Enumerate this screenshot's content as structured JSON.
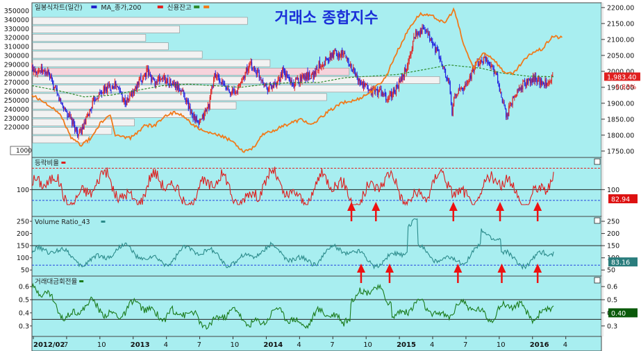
{
  "title": "거래소 종합지수",
  "colors": {
    "plot_bg": "#a8eef0",
    "frame_bg": "#ffffff",
    "candle_up": "#e02020",
    "candle_down": "#2020e0",
    "ma": "#2e8b2e",
    "credit": "#f07a1a",
    "ratio": "#dd1c1c",
    "vr": "#2a8a8a",
    "turnover": "#1a7a1a",
    "ref_blue": "#2244dd",
    "ref_red": "#dd2222",
    "arrow": "#ee1111"
  },
  "legend": {
    "p1": [
      {
        "label": "일봉식차트(일간)",
        "color": "#2222cc"
      },
      {
        "label": "MA_종가,200",
        "color": "#e02020"
      },
      {
        "label": "신용잔고",
        "color": "#2e8b2e"
      },
      {
        "label": "",
        "color": "#f07a1a"
      }
    ],
    "p2": {
      "label": "등락비율",
      "color": "#dd1c1c"
    },
    "p3": {
      "label": "Volume Ratio_43",
      "color": "#2a8a8a"
    },
    "p4": {
      "label": "거래대금회전율",
      "color": "#1a7a1a"
    }
  },
  "x_axis": {
    "labels": [
      "2012/02",
      "7",
      "10",
      "2013",
      "4",
      "7",
      "10",
      "2014",
      "4",
      "7",
      "10",
      "2015",
      "4",
      "7",
      "10",
      "2016",
      "4"
    ],
    "bold": [
      "2012/02",
      "2013",
      "2014",
      "2015",
      "2016"
    ]
  },
  "chart_data": [
    {
      "type": "candlestick",
      "name": "price",
      "left_ticks": [
        "350000",
        "340000",
        "330000",
        "320000",
        "310000",
        "300000",
        "290000",
        "280000",
        "270000",
        "260000",
        "250000",
        "240000",
        "230000",
        "220000"
      ],
      "left_unit": "1000",
      "right_ticks": [
        "2200.00",
        "2150.00",
        "2100.00",
        "2050.00",
        "2000.00",
        "1950.00",
        "1900.00",
        "1850.00",
        "1800.00",
        "1750.00"
      ],
      "ylim": [
        1730,
        2215
      ],
      "last_value": "1,983.40",
      "change_pct": "0.83%",
      "price_path": [
        [
          0,
          2010
        ],
        [
          0.03,
          1995
        ],
        [
          0.05,
          1920
        ],
        [
          0.07,
          1860
        ],
        [
          0.09,
          1800
        ],
        [
          0.1,
          1830
        ],
        [
          0.12,
          1915
        ],
        [
          0.14,
          1945
        ],
        [
          0.16,
          1960
        ],
        [
          0.18,
          1900
        ],
        [
          0.2,
          1950
        ],
        [
          0.22,
          2000
        ],
        [
          0.235,
          1965
        ],
        [
          0.25,
          1980
        ],
        [
          0.27,
          1960
        ],
        [
          0.29,
          1935
        ],
        [
          0.3,
          1890
        ],
        [
          0.32,
          1830
        ],
        [
          0.34,
          1900
        ],
        [
          0.35,
          1990
        ],
        [
          0.37,
          1950
        ],
        [
          0.39,
          1930
        ],
        [
          0.41,
          2000
        ],
        [
          0.42,
          2020
        ],
        [
          0.44,
          1980
        ],
        [
          0.45,
          1950
        ],
        [
          0.47,
          1955
        ],
        [
          0.48,
          2000
        ],
        [
          0.5,
          1960
        ],
        [
          0.52,
          1985
        ],
        [
          0.54,
          1990
        ],
        [
          0.55,
          2020
        ],
        [
          0.57,
          2040
        ],
        [
          0.58,
          2060
        ],
        [
          0.6,
          2050
        ],
        [
          0.62,
          1990
        ],
        [
          0.63,
          1960
        ],
        [
          0.65,
          1940
        ],
        [
          0.67,
          1935
        ],
        [
          0.68,
          1910
        ],
        [
          0.7,
          1950
        ],
        [
          0.71,
          1980
        ],
        [
          0.72,
          2020
        ],
        [
          0.735,
          2120
        ],
        [
          0.75,
          2130
        ],
        [
          0.76,
          2110
        ],
        [
          0.78,
          2050
        ],
        [
          0.79,
          2000
        ],
        [
          0.8,
          1960
        ],
        [
          0.805,
          1860
        ],
        [
          0.81,
          1930
        ],
        [
          0.83,
          1950
        ],
        [
          0.85,
          2020
        ],
        [
          0.87,
          2040
        ],
        [
          0.88,
          2020
        ],
        [
          0.89,
          1990
        ],
        [
          0.9,
          1910
        ],
        [
          0.91,
          1860
        ],
        [
          0.92,
          1905
        ],
        [
          0.935,
          1950
        ],
        [
          0.95,
          1970
        ],
        [
          0.965,
          1980
        ],
        [
          0.98,
          1960
        ],
        [
          1.0,
          1985
        ]
      ],
      "ma_path": [
        [
          0,
          1955
        ],
        [
          0.05,
          1940
        ],
        [
          0.1,
          1920
        ],
        [
          0.15,
          1925
        ],
        [
          0.2,
          1940
        ],
        [
          0.25,
          1955
        ],
        [
          0.3,
          1960
        ],
        [
          0.35,
          1955
        ],
        [
          0.4,
          1950
        ],
        [
          0.45,
          1960
        ],
        [
          0.5,
          1965
        ],
        [
          0.55,
          1965
        ],
        [
          0.6,
          1980
        ],
        [
          0.65,
          1985
        ],
        [
          0.7,
          1990
        ],
        [
          0.75,
          2005
        ],
        [
          0.8,
          2020
        ],
        [
          0.83,
          2015
        ],
        [
          0.86,
          2010
        ],
        [
          0.9,
          1995
        ],
        [
          0.95,
          1985
        ],
        [
          1.0,
          1983
        ]
      ],
      "credit_path": [
        [
          0,
          1925
        ],
        [
          0.03,
          1900
        ],
        [
          0.06,
          1860
        ],
        [
          0.08,
          1790
        ],
        [
          0.1,
          1770
        ],
        [
          0.12,
          1790
        ],
        [
          0.14,
          1840
        ],
        [
          0.16,
          1860
        ],
        [
          0.17,
          1800
        ],
        [
          0.2,
          1790
        ],
        [
          0.23,
          1830
        ],
        [
          0.25,
          1830
        ],
        [
          0.27,
          1860
        ],
        [
          0.29,
          1870
        ],
        [
          0.31,
          1860
        ],
        [
          0.33,
          1830
        ],
        [
          0.35,
          1810
        ],
        [
          0.38,
          1800
        ],
        [
          0.41,
          1780
        ],
        [
          0.43,
          1750
        ],
        [
          0.45,
          1760
        ],
        [
          0.47,
          1800
        ],
        [
          0.5,
          1820
        ],
        [
          0.53,
          1840
        ],
        [
          0.55,
          1850
        ],
        [
          0.57,
          1830
        ],
        [
          0.6,
          1870
        ],
        [
          0.63,
          1900
        ],
        [
          0.66,
          1910
        ],
        [
          0.69,
          1935
        ],
        [
          0.72,
          1980
        ],
        [
          0.74,
          2050
        ],
        [
          0.77,
          2140
        ],
        [
          0.79,
          2180
        ],
        [
          0.82,
          2170
        ],
        [
          0.84,
          2150
        ],
        [
          0.86,
          2195
        ],
        [
          0.88,
          2080
        ],
        [
          0.9,
          2010
        ],
        [
          0.92,
          2060
        ],
        [
          0.94,
          2040
        ],
        [
          0.96,
          2000
        ],
        [
          0.98,
          1990
        ],
        [
          1.0,
          2030
        ],
        [
          1.02,
          2060
        ],
        [
          1.04,
          2070
        ],
        [
          1.06,
          2110
        ],
        [
          1.08,
          2105
        ]
      ],
      "volume_profile": [
        0.38,
        0.26,
        0.2,
        0.24,
        0.3,
        0.42,
        0.56,
        0.72,
        0.6,
        0.52,
        0.36,
        0.28,
        0.18,
        0.14,
        0.1
      ]
    },
    {
      "type": "line",
      "name": "ratio",
      "left_ticks": [
        "100"
      ],
      "right_ticks": [
        "100"
      ],
      "ylim": [
        50,
        160
      ],
      "ref_upper": 140,
      "ref_mid": 100,
      "ref_lower": 80,
      "last_value": "82.94",
      "arrows": [
        0.561,
        0.604,
        0.74,
        0.822,
        0.888
      ]
    },
    {
      "type": "line",
      "name": "volume_ratio",
      "left_ticks": [
        "250",
        "200",
        "150",
        "100",
        "50"
      ],
      "right_ticks": [
        "250",
        "200",
        "150",
        "100",
        "50"
      ],
      "ylim": [
        25,
        270
      ],
      "ref_upper": 150,
      "ref_lower": 70,
      "last_value": "83.16",
      "arrows": [
        0.578,
        0.628,
        0.748,
        0.825,
        0.888
      ]
    },
    {
      "type": "line",
      "name": "turnover",
      "left_ticks": [
        "0.6",
        "0.5",
        "0.4",
        "0.3"
      ],
      "right_ticks": [
        "0.6",
        "0.5",
        "0.4",
        "0.3"
      ],
      "ylim": [
        0.22,
        0.68
      ],
      "ref_upper": 0.5,
      "ref_lower": 0.35,
      "last_value": "0.40"
    }
  ]
}
